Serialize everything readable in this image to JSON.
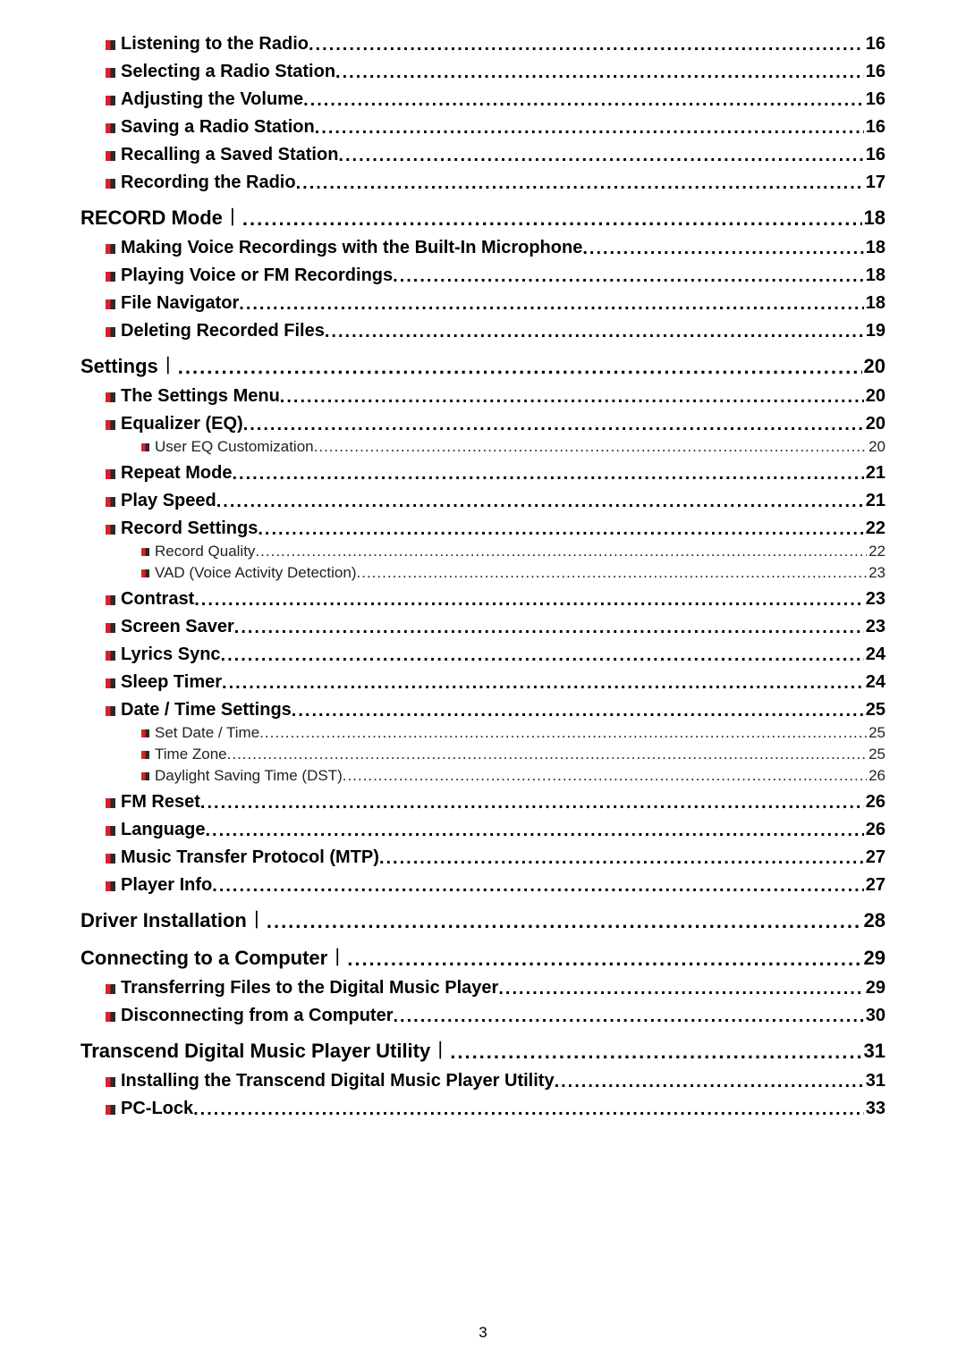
{
  "page_number": "3",
  "bullet_colors": {
    "left": "#d8232a",
    "right": "#2a2a2a"
  },
  "entries": [
    {
      "level": "item",
      "title": "Listening to the Radio",
      "page": "16"
    },
    {
      "level": "item",
      "title": "Selecting a Radio Station",
      "page": "16"
    },
    {
      "level": "item",
      "title": "Adjusting the Volume",
      "page": "16"
    },
    {
      "level": "item",
      "title": "Saving a Radio Station",
      "page": "16"
    },
    {
      "level": "item",
      "title": "Recalling a Saved Station",
      "page": "16"
    },
    {
      "level": "item",
      "title": "Recording the Radio",
      "page": "17"
    },
    {
      "level": "section",
      "title": "RECORD Mode︱",
      "page": "18"
    },
    {
      "level": "item",
      "title": "Making Voice Recordings with the Built-In Microphone",
      "page": "18"
    },
    {
      "level": "item",
      "title": "Playing Voice or FM Recordings",
      "page": "18"
    },
    {
      "level": "item",
      "title": "File Navigator",
      "page": "18"
    },
    {
      "level": "item",
      "title": "Deleting Recorded Files",
      "page": "19"
    },
    {
      "level": "section",
      "title": "Settings︱",
      "page": "20"
    },
    {
      "level": "item",
      "title": "The Settings Menu",
      "page": "20"
    },
    {
      "level": "item",
      "title": "Equalizer (EQ)",
      "page": "20"
    },
    {
      "level": "sub",
      "title": "User EQ Customization",
      "page": "20"
    },
    {
      "level": "item",
      "title": "Repeat Mode",
      "page": "21"
    },
    {
      "level": "item",
      "title": "Play Speed",
      "page": "21"
    },
    {
      "level": "item",
      "title": "Record Settings",
      "page": "22"
    },
    {
      "level": "sub",
      "title": "Record Quality",
      "page": "22"
    },
    {
      "level": "sub",
      "title": "VAD (Voice Activity Detection)",
      "page": "23"
    },
    {
      "level": "item",
      "title": "Contrast",
      "page": "23"
    },
    {
      "level": "item",
      "title": "Screen Saver",
      "page": "23"
    },
    {
      "level": "item",
      "title": "Lyrics Sync",
      "page": "24"
    },
    {
      "level": "item",
      "title": "Sleep Timer",
      "page": "24"
    },
    {
      "level": "item",
      "title": "Date / Time Settings",
      "page": "25"
    },
    {
      "level": "sub",
      "title": "Set Date / Time",
      "page": "25"
    },
    {
      "level": "sub",
      "title": "Time Zone",
      "page": "25"
    },
    {
      "level": "sub",
      "title": "Daylight Saving Time (DST)",
      "page": "26"
    },
    {
      "level": "item",
      "title": "FM Reset",
      "page": "26"
    },
    {
      "level": "item",
      "title": "Language",
      "page": "26"
    },
    {
      "level": "item",
      "title": "Music Transfer Protocol (MTP)",
      "page": "27"
    },
    {
      "level": "item",
      "title": "Player Info",
      "page": "27"
    },
    {
      "level": "section",
      "title": "Driver Installation︱",
      "page": "28"
    },
    {
      "level": "section",
      "title": "Connecting to a Computer︱",
      "page": "29"
    },
    {
      "level": "item",
      "title": "Transferring Files to the Digital Music Player",
      "page": "29"
    },
    {
      "level": "item",
      "title": "Disconnecting from a Computer",
      "page": "30"
    },
    {
      "level": "section",
      "title": "Transcend Digital Music Player Utility︱",
      "page": "31"
    },
    {
      "level": "item",
      "title": "Installing the Transcend Digital Music Player Utility",
      "page": "31"
    },
    {
      "level": "item",
      "title": "PC-Lock",
      "page": "33"
    }
  ]
}
